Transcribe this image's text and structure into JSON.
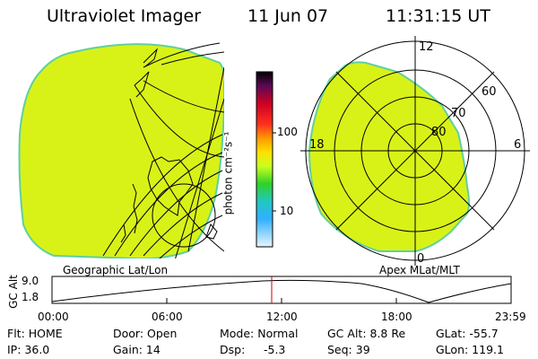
{
  "header": {
    "instrument": "Ultraviolet Imager",
    "date": "11 Jun 07",
    "time": "11:31:15 UT"
  },
  "geo_panel": {
    "label": "Geographic Lat/Lon"
  },
  "polar_panel": {
    "label": "Apex MLat/MLT",
    "mlt_labels": [
      "12",
      "18",
      "6",
      "0"
    ],
    "mlat_labels": [
      "60",
      "70",
      "80"
    ]
  },
  "colorbar": {
    "unit_label": "photon cm⁻²s⁻¹",
    "tick_labels": [
      "100",
      "10"
    ],
    "scale": "log"
  },
  "altitude_plot": {
    "ylabel": "GC Alt",
    "y_ticks": [
      "9.0",
      "1.8"
    ],
    "x_ticks": [
      "00:00",
      "06:00",
      "12:00",
      "18:00",
      "23:59"
    ],
    "current_time_marker": "11:31",
    "marker_color": "#cc0000"
  },
  "status": {
    "flt": "Flt: HOME",
    "ip": "IP: 36.0",
    "door": "Door: Open",
    "gain": "Gain: 14",
    "mode": "Mode: Normal",
    "dsp_label": "Dsp:",
    "dsp_value": "-5.3",
    "gc_alt": "GC Alt: 8.8 Re",
    "seq": "Seq: 39",
    "glat": "GLat: -55.7",
    "glon": "GLon: 119.1"
  },
  "colors": {
    "emission": "#d8f218",
    "emission_edge": "#5fd0a0",
    "background": "#ffffff",
    "line": "#000000"
  }
}
